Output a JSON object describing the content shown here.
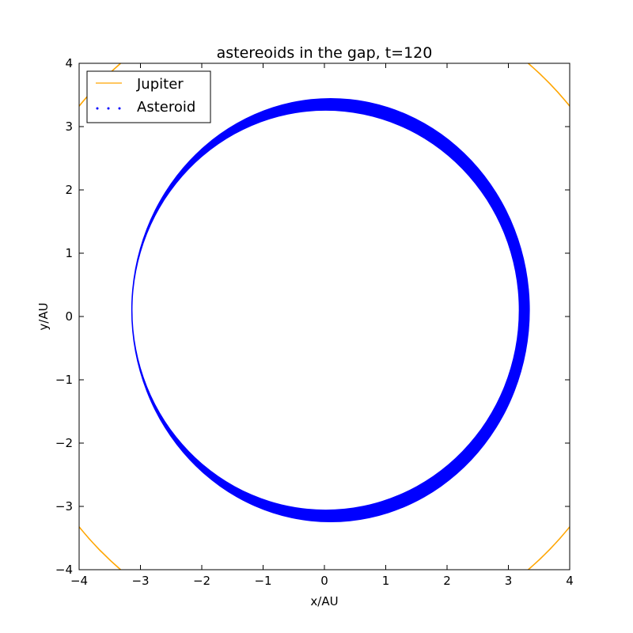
{
  "chart_data": {
    "type": "line",
    "title": "astereoids in the gap, t=120",
    "xlabel": "x/AU",
    "ylabel": "y/AU",
    "xlim": [
      -4,
      4
    ],
    "ylim": [
      -4,
      4
    ],
    "xticks": [
      -4,
      -3,
      -2,
      -1,
      0,
      1,
      2,
      3,
      4
    ],
    "yticks": [
      -4,
      -3,
      -2,
      -1,
      0,
      1,
      2,
      3,
      4
    ],
    "xtick_labels": [
      "−4",
      "−3",
      "−2",
      "−1",
      "0",
      "1",
      "2",
      "3",
      "4"
    ],
    "ytick_labels": [
      "−4",
      "−3",
      "−2",
      "−1",
      "0",
      "1",
      "2",
      "3",
      "4"
    ],
    "grid": false,
    "legend_position": "top-left",
    "series": [
      {
        "name": "Jupiter",
        "style": "line",
        "color": "#ffa500",
        "orbit": {
          "center": [
            0,
            0
          ],
          "radius": 5.2
        }
      },
      {
        "name": "Asteroid",
        "style": "points",
        "color": "#0000ff",
        "band": {
          "outer": {
            "center": [
              0.1,
              0.1
            ],
            "rx": 3.25,
            "ry": 3.35
          },
          "inner": {
            "center": [
              0.02,
              0.1
            ],
            "rx": 3.15,
            "ry": 3.15
          }
        }
      }
    ]
  }
}
